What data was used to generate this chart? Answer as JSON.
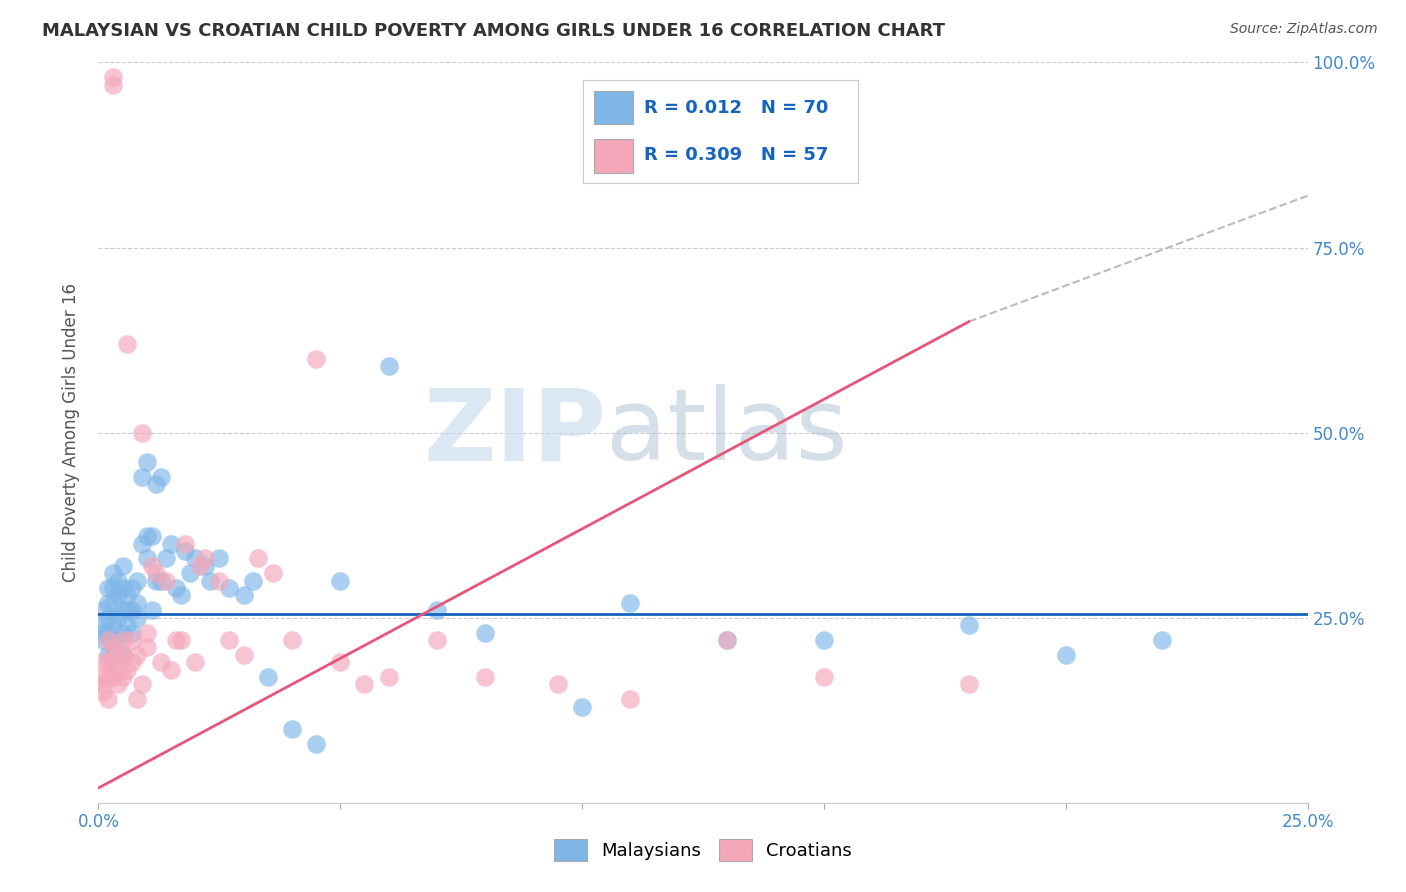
{
  "title": "MALAYSIAN VS CROATIAN CHILD POVERTY AMONG GIRLS UNDER 16 CORRELATION CHART",
  "source": "Source: ZipAtlas.com",
  "ylabel": "Child Poverty Among Girls Under 16",
  "xlim": [
    0,
    0.25
  ],
  "ylim": [
    0,
    1.0
  ],
  "legend_r_malaysian": "R = 0.012",
  "legend_n_malaysian": "N = 70",
  "legend_r_croatian": "R = 0.309",
  "legend_n_croatian": "N = 57",
  "malaysian_color": "#7EB6E8",
  "croatian_color": "#F4A7B9",
  "malaysian_line_color": "#1565C0",
  "croatian_line_color": "#E8547A",
  "watermark_zip": "ZIP",
  "watermark_atlas": "atlas",
  "background_color": "#FFFFFF",
  "malaysian_x": [
    0.001,
    0.001,
    0.001,
    0.001,
    0.002,
    0.002,
    0.002,
    0.002,
    0.002,
    0.003,
    0.003,
    0.003,
    0.003,
    0.003,
    0.004,
    0.004,
    0.004,
    0.004,
    0.005,
    0.005,
    0.005,
    0.005,
    0.005,
    0.006,
    0.006,
    0.006,
    0.007,
    0.007,
    0.007,
    0.008,
    0.008,
    0.008,
    0.009,
    0.009,
    0.01,
    0.01,
    0.01,
    0.011,
    0.011,
    0.012,
    0.012,
    0.013,
    0.013,
    0.014,
    0.015,
    0.016,
    0.017,
    0.018,
    0.019,
    0.02,
    0.022,
    0.023,
    0.025,
    0.027,
    0.03,
    0.032,
    0.035,
    0.04,
    0.045,
    0.05,
    0.06,
    0.07,
    0.08,
    0.1,
    0.11,
    0.13,
    0.15,
    0.18,
    0.2,
    0.22
  ],
  "malaysian_y": [
    0.22,
    0.23,
    0.24,
    0.26,
    0.2,
    0.23,
    0.25,
    0.27,
    0.29,
    0.21,
    0.24,
    0.27,
    0.29,
    0.31,
    0.22,
    0.25,
    0.28,
    0.3,
    0.2,
    0.23,
    0.26,
    0.29,
    0.32,
    0.24,
    0.26,
    0.28,
    0.23,
    0.26,
    0.29,
    0.25,
    0.27,
    0.3,
    0.35,
    0.44,
    0.33,
    0.36,
    0.46,
    0.26,
    0.36,
    0.3,
    0.43,
    0.44,
    0.3,
    0.33,
    0.35,
    0.29,
    0.28,
    0.34,
    0.31,
    0.33,
    0.32,
    0.3,
    0.33,
    0.29,
    0.28,
    0.3,
    0.17,
    0.1,
    0.08,
    0.3,
    0.59,
    0.26,
    0.23,
    0.13,
    0.27,
    0.22,
    0.22,
    0.24,
    0.2,
    0.22
  ],
  "croatian_x": [
    0.001,
    0.001,
    0.001,
    0.001,
    0.002,
    0.002,
    0.002,
    0.002,
    0.003,
    0.003,
    0.003,
    0.003,
    0.003,
    0.004,
    0.004,
    0.004,
    0.005,
    0.005,
    0.005,
    0.006,
    0.006,
    0.007,
    0.007,
    0.008,
    0.008,
    0.009,
    0.009,
    0.01,
    0.01,
    0.011,
    0.012,
    0.013,
    0.014,
    0.015,
    0.016,
    0.017,
    0.018,
    0.02,
    0.021,
    0.022,
    0.025,
    0.027,
    0.03,
    0.033,
    0.036,
    0.04,
    0.045,
    0.05,
    0.055,
    0.06,
    0.07,
    0.08,
    0.095,
    0.11,
    0.13,
    0.15,
    0.18
  ],
  "croatian_y": [
    0.15,
    0.16,
    0.17,
    0.19,
    0.14,
    0.17,
    0.19,
    0.22,
    0.97,
    0.98,
    0.17,
    0.19,
    0.21,
    0.16,
    0.18,
    0.2,
    0.17,
    0.2,
    0.22,
    0.18,
    0.62,
    0.19,
    0.22,
    0.14,
    0.2,
    0.16,
    0.5,
    0.21,
    0.23,
    0.32,
    0.31,
    0.19,
    0.3,
    0.18,
    0.22,
    0.22,
    0.35,
    0.19,
    0.32,
    0.33,
    0.3,
    0.22,
    0.2,
    0.33,
    0.31,
    0.22,
    0.6,
    0.19,
    0.16,
    0.17,
    0.22,
    0.17,
    0.16,
    0.14,
    0.22,
    0.17,
    0.16
  ],
  "mal_line_x": [
    0.0,
    0.25
  ],
  "mal_line_y": [
    0.255,
    0.255
  ],
  "cro_line_x": [
    0.0,
    0.18
  ],
  "cro_line_y": [
    0.02,
    0.65
  ],
  "dash_line_x": [
    0.18,
    0.25
  ],
  "dash_line_y": [
    0.65,
    0.82
  ]
}
